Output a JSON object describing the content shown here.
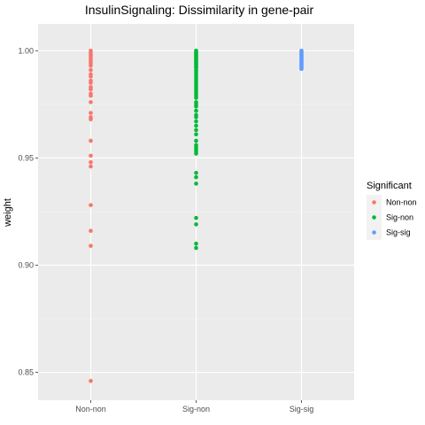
{
  "chart_data": {
    "type": "scatter",
    "title": "InsulinSignaling: Dissimilarity in gene-pair",
    "xlabel": "",
    "ylabel": "weight",
    "categories": [
      "Non-non",
      "Sig-non",
      "Sig-sig"
    ],
    "ylim": [
      0.837,
      1.0125
    ],
    "y_ticks": [
      0.85,
      0.9,
      0.95,
      1.0
    ],
    "y_tick_labels": [
      "0.85",
      "0.90",
      "0.95",
      "1.00"
    ],
    "grid": true,
    "legend": {
      "title": "Significant",
      "placement": "right",
      "entries": [
        "Non-non",
        "Sig-non",
        "Sig-sig"
      ]
    },
    "colors": {
      "Non-non": "#F8766D",
      "Sig-non": "#00BA38",
      "Sig-sig": "#619CFF",
      "panel_bg": "#EBEBEB",
      "grid": "#FFFFFF"
    },
    "series": [
      {
        "name": "Non-non",
        "category": "Non-non",
        "y": [
          1.0,
          0.999,
          0.998,
          0.997,
          0.996,
          0.995,
          0.994,
          0.993,
          0.991,
          0.989,
          0.988,
          0.986,
          0.985,
          0.983,
          0.982,
          0.98,
          0.979,
          0.976,
          0.971,
          0.969,
          0.968,
          0.958,
          0.951,
          0.948,
          0.946,
          0.928,
          0.916,
          0.909,
          0.846
        ]
      },
      {
        "name": "Sig-non",
        "category": "Sig-non",
        "y": [
          1.0,
          0.9995,
          0.999,
          0.9985,
          0.998,
          0.9975,
          0.997,
          0.9965,
          0.996,
          0.9955,
          0.995,
          0.9945,
          0.994,
          0.9935,
          0.993,
          0.9925,
          0.992,
          0.991,
          0.99,
          0.989,
          0.988,
          0.987,
          0.986,
          0.985,
          0.984,
          0.983,
          0.982,
          0.981,
          0.98,
          0.979,
          0.978,
          0.976,
          0.975,
          0.974,
          0.972,
          0.97,
          0.969,
          0.967,
          0.965,
          0.963,
          0.961,
          0.958,
          0.956,
          0.955,
          0.954,
          0.953,
          0.952,
          0.943,
          0.941,
          0.938,
          0.922,
          0.919,
          0.91,
          0.908
        ]
      },
      {
        "name": "Sig-sig",
        "category": "Sig-sig",
        "y": [
          1.0,
          0.9995,
          0.999,
          0.9985,
          0.998,
          0.9975,
          0.997,
          0.9965,
          0.996,
          0.9955,
          0.995,
          0.9945,
          0.994,
          0.9935,
          0.993,
          0.9925,
          0.992,
          0.9915
        ]
      }
    ]
  }
}
